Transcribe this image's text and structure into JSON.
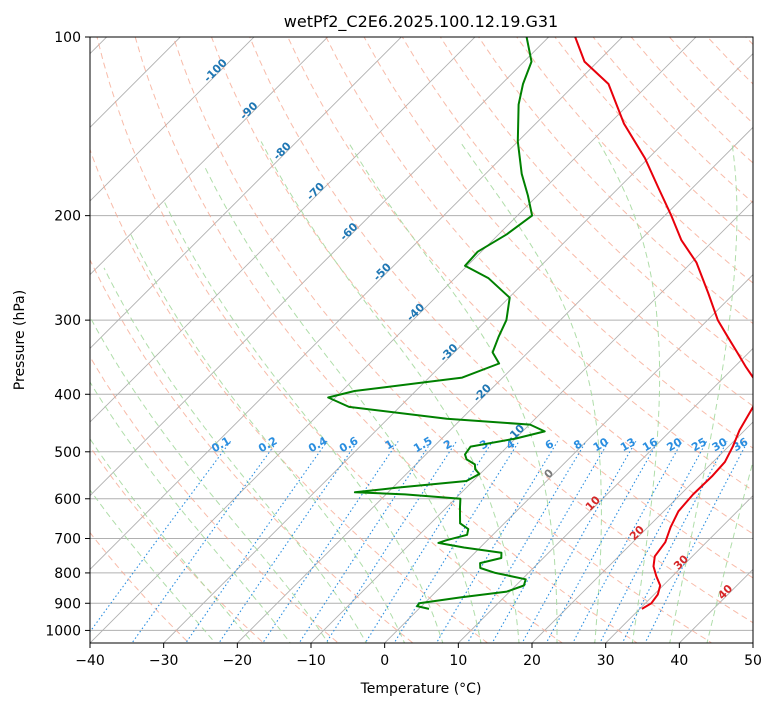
{
  "chart_data": {
    "type": "line",
    "subtype": "skew-T log-P diagram",
    "title": "wetPf2_C2E6.2025.100.12.19.G31",
    "xlabel": "Temperature (°C)",
    "ylabel": "Pressure (hPa)",
    "xlim": [
      -40,
      50
    ],
    "ylim": [
      1050,
      100
    ],
    "y_scale": "log",
    "x_ticks": [
      -40,
      -30,
      -20,
      -10,
      0,
      10,
      20,
      30,
      40,
      50
    ],
    "y_ticks": [
      100,
      200,
      300,
      400,
      500,
      600,
      700,
      800,
      900,
      1000
    ],
    "grid": true,
    "series": [
      {
        "role": "temperature",
        "color": "#e8000b",
        "points": [
          {
            "p": 920,
            "t": 30.3
          },
          {
            "p": 900,
            "t": 30.8
          },
          {
            "p": 870,
            "t": 30.5
          },
          {
            "p": 840,
            "t": 29.6
          },
          {
            "p": 810,
            "t": 27.8
          },
          {
            "p": 780,
            "t": 26.1
          },
          {
            "p": 750,
            "t": 24.9
          },
          {
            "p": 710,
            "t": 24.4
          },
          {
            "p": 670,
            "t": 23.1
          },
          {
            "p": 630,
            "t": 22.0
          },
          {
            "p": 590,
            "t": 21.7
          },
          {
            "p": 550,
            "t": 21.8
          },
          {
            "p": 520,
            "t": 21.6
          },
          {
            "p": 490,
            "t": 20.6
          },
          {
            "p": 460,
            "t": 19.3
          },
          {
            "p": 430,
            "t": 18.3
          },
          {
            "p": 410,
            "t": 17.6
          },
          {
            "p": 395,
            "t": 16.9
          },
          {
            "p": 380,
            "t": 14.8
          },
          {
            "p": 360,
            "t": 11.6
          },
          {
            "p": 340,
            "t": 8.4
          },
          {
            "p": 320,
            "t": 5.0
          },
          {
            "p": 300,
            "t": 1.4
          },
          {
            "p": 270,
            "t": -3.6
          },
          {
            "p": 240,
            "t": -9.3
          },
          {
            "p": 220,
            "t": -14.4
          },
          {
            "p": 200,
            "t": -19.1
          },
          {
            "p": 180,
            "t": -24.5
          },
          {
            "p": 160,
            "t": -30.5
          },
          {
            "p": 140,
            "t": -38.0
          },
          {
            "p": 120,
            "t": -45.5
          },
          {
            "p": 110,
            "t": -51.8
          },
          {
            "p": 100,
            "t": -56.4
          }
        ]
      },
      {
        "role": "dewpoint",
        "color": "#008000",
        "points": [
          {
            "p": 920,
            "t": 1.4
          },
          {
            "p": 910,
            "t": -0.6
          },
          {
            "p": 900,
            "t": -0.7
          },
          {
            "p": 880,
            "t": 4.0
          },
          {
            "p": 860,
            "t": 9.6
          },
          {
            "p": 840,
            "t": 11.1
          },
          {
            "p": 820,
            "t": 10.5
          },
          {
            "p": 800,
            "t": 5.5
          },
          {
            "p": 785,
            "t": 2.8
          },
          {
            "p": 770,
            "t": 2.1
          },
          {
            "p": 755,
            "t": 4.3
          },
          {
            "p": 740,
            "t": 3.6
          },
          {
            "p": 725,
            "t": -2.2
          },
          {
            "p": 712,
            "t": -6.3
          },
          {
            "p": 705,
            "t": -5.6
          },
          {
            "p": 690,
            "t": -3.5
          },
          {
            "p": 675,
            "t": -4.1
          },
          {
            "p": 660,
            "t": -6.0
          },
          {
            "p": 640,
            "t": -7.1
          },
          {
            "p": 620,
            "t": -8.2
          },
          {
            "p": 600,
            "t": -9.3
          },
          {
            "p": 590,
            "t": -17.4
          },
          {
            "p": 585,
            "t": -24.5
          },
          {
            "p": 575,
            "t": -19.5
          },
          {
            "p": 560,
            "t": -10.9
          },
          {
            "p": 545,
            "t": -10.1
          },
          {
            "p": 535,
            "t": -11.3
          },
          {
            "p": 525,
            "t": -12.0
          },
          {
            "p": 515,
            "t": -13.8
          },
          {
            "p": 505,
            "t": -14.7
          },
          {
            "p": 490,
            "t": -15.0
          },
          {
            "p": 475,
            "t": -10.0
          },
          {
            "p": 462,
            "t": -7.0
          },
          {
            "p": 450,
            "t": -9.9
          },
          {
            "p": 440,
            "t": -22.0
          },
          {
            "p": 420,
            "t": -36.9
          },
          {
            "p": 405,
            "t": -41.0
          },
          {
            "p": 395,
            "t": -38.3
          },
          {
            "p": 375,
            "t": -25.5
          },
          {
            "p": 355,
            "t": -22.4
          },
          {
            "p": 340,
            "t": -24.8
          },
          {
            "p": 320,
            "t": -26.1
          },
          {
            "p": 300,
            "t": -27.3
          },
          {
            "p": 275,
            "t": -29.9
          },
          {
            "p": 255,
            "t": -35.4
          },
          {
            "p": 243,
            "t": -40.3
          },
          {
            "p": 230,
            "t": -40.5
          },
          {
            "p": 215,
            "t": -38.9
          },
          {
            "p": 200,
            "t": -38.0
          },
          {
            "p": 185,
            "t": -41.3
          },
          {
            "p": 170,
            "t": -45.1
          },
          {
            "p": 150,
            "t": -50.0
          },
          {
            "p": 130,
            "t": -54.9
          },
          {
            "p": 120,
            "t": -57.1
          },
          {
            "p": 110,
            "t": -59.0
          },
          {
            "p": 100,
            "t": -63.0
          }
        ]
      }
    ],
    "dry_adiabat_labels": [
      "-100",
      "-90",
      "-80",
      "-70",
      "-60",
      "-50",
      "-40",
      "-30",
      "-20",
      "-10",
      "0",
      "10",
      "20",
      "30",
      "40"
    ],
    "mixing_ratio_labels": [
      "0.1",
      "0.2",
      "0.4",
      "0.6",
      "1",
      "1.5",
      "2",
      "3",
      "4",
      "6",
      "8",
      "10",
      "13",
      "16",
      "20",
      "25",
      "30",
      "36"
    ],
    "colors": {
      "isotherm": "#b0b0b0",
      "dry_adiabat": "#f5a48c",
      "moist_adiabat": "#a6d9a0",
      "mixing_ratio": "#2a8ee0",
      "label_negative": "#1f77b4",
      "label_zero": "#7a7a7a",
      "label_positive": "#d62728",
      "unstable_adiabat": "#d9b995"
    }
  }
}
